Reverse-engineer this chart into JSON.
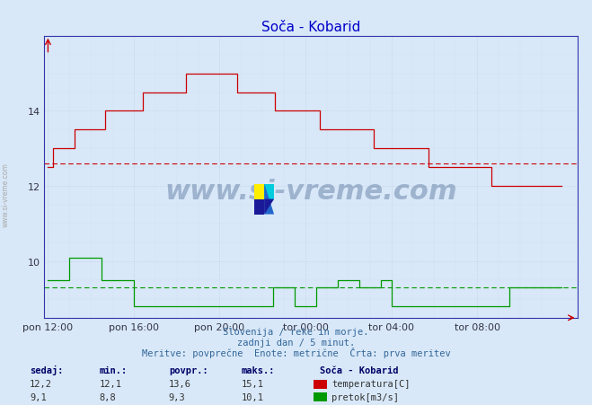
{
  "title": "Soča - Kobarid",
  "title_color": "#0000cc",
  "bg_color": "#d8e8f8",
  "plot_bg_color": "#d8e8f8",
  "grid_color": "#b8c8d8",
  "temp_color": "#cc0000",
  "flow_color": "#009900",
  "avg_temp": 12.6,
  "avg_flow": 9.3,
  "temp_min": 12.1,
  "temp_max": 15.1,
  "temp_curr": 12.2,
  "flow_min": 8.8,
  "flow_max": 10.1,
  "flow_curr": 9.1,
  "flow_avg_display": 9.3,
  "xlabel_times": [
    "pon 12:00",
    "pon 16:00",
    "pon 20:00",
    "tor 00:00",
    "tor 04:00",
    "tor 08:00"
  ],
  "footer_line1": "Slovenija / reke in morje.",
  "footer_line2": "zadnji dan / 5 minut.",
  "footer_line3": "Meritve: povprečne  Enote: metrične  Črta: prva meritev",
  "label_sedaj": "sedaj:",
  "label_min": "min.:",
  "label_povpr": "povpr.:",
  "label_maks": "maks.:",
  "label_station": "Soča - Kobarid",
  "label_temp": "temperatura[C]",
  "label_flow": "pretok[m3/s]",
  "n_points": 288,
  "watermark": "www.si-vreme.com",
  "watermark_color": "#1a3a6e",
  "side_text_color": "#aaaaaa",
  "ylim_min": 8.5,
  "ylim_max": 16.0,
  "yticks": [
    10,
    12,
    14
  ]
}
